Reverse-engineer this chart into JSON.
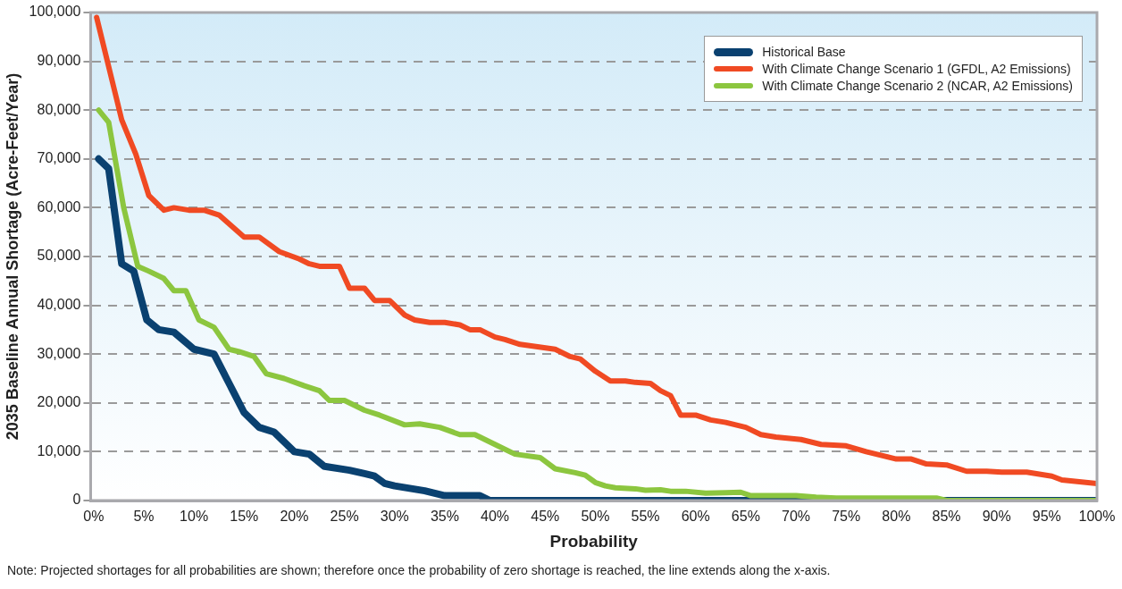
{
  "chart_data": {
    "type": "line",
    "xlabel": "Probability",
    "ylabel": "2035 Baseline Annual Shortage (Acre-Feet/Year)",
    "annotations": [
      "Note: Projected shortages for all probabilities are shown; therefore once the probability of zero shortage is reached, the line extends along the x-axis."
    ],
    "xlim": [
      -0.3,
      100
    ],
    "ylim": [
      0,
      100000
    ],
    "xticks": [
      {
        "value": 0,
        "label": "0%"
      },
      {
        "value": 5,
        "label": "5%"
      },
      {
        "value": 10,
        "label": "10%"
      },
      {
        "value": 15,
        "label": "15%"
      },
      {
        "value": 20,
        "label": "20%"
      },
      {
        "value": 25,
        "label": "25%"
      },
      {
        "value": 30,
        "label": "30%"
      },
      {
        "value": 35,
        "label": "35%"
      },
      {
        "value": 40,
        "label": "40%"
      },
      {
        "value": 45,
        "label": "45%"
      },
      {
        "value": 50,
        "label": "50%"
      },
      {
        "value": 55,
        "label": "55%"
      },
      {
        "value": 60,
        "label": "60%"
      },
      {
        "value": 65,
        "label": "65%"
      },
      {
        "value": 70,
        "label": "70%"
      },
      {
        "value": 75,
        "label": "75%"
      },
      {
        "value": 80,
        "label": "80%"
      },
      {
        "value": 85,
        "label": "85%"
      },
      {
        "value": 90,
        "label": "90%"
      },
      {
        "value": 95,
        "label": "95%"
      },
      {
        "value": 100,
        "label": "100%"
      }
    ],
    "yticks": [
      {
        "value": 0,
        "label": "0"
      },
      {
        "value": 10000,
        "label": "10,000"
      },
      {
        "value": 20000,
        "label": "20,000"
      },
      {
        "value": 30000,
        "label": "30,000"
      },
      {
        "value": 40000,
        "label": "40,000"
      },
      {
        "value": 50000,
        "label": "50,000"
      },
      {
        "value": 60000,
        "label": "60,000"
      },
      {
        "value": 70000,
        "label": "70,000"
      },
      {
        "value": 80000,
        "label": "80,000"
      },
      {
        "value": 90000,
        "label": "90,000"
      },
      {
        "value": 100000,
        "label": "100,000"
      }
    ],
    "grid": "y",
    "legend": "top right",
    "marker": "none",
    "line_style": "solid",
    "series": [
      {
        "name": "Historical Base",
        "color": "#0a4170",
        "x": [
          0.5,
          1.5,
          2.8,
          4,
          5.3,
          6.5,
          8,
          10,
          12,
          14,
          15,
          16.5,
          18,
          20,
          21.5,
          23,
          25.5,
          27,
          28,
          29,
          30,
          33,
          35,
          37,
          38.5,
          39.5,
          100
        ],
        "values": [
          70000,
          68000,
          48500,
          47000,
          37000,
          35000,
          34500,
          31000,
          30000,
          22000,
          18000,
          15000,
          14000,
          10000,
          9500,
          7000,
          6200,
          5500,
          5000,
          3500,
          3000,
          2000,
          1000,
          1000,
          1000,
          0,
          0
        ]
      },
      {
        "name": "With Climate Change Scenario 1 (GFDL, A2 Emissions)",
        "color": "#f04a23",
        "x": [
          0.3,
          2.8,
          4.2,
          5.5,
          7,
          8,
          9.5,
          11,
          12.5,
          15,
          16.5,
          18.5,
          20.5,
          21.5,
          22.5,
          24.5,
          25.5,
          27,
          28,
          29.5,
          31,
          32,
          33.5,
          35,
          36.5,
          37.5,
          38.5,
          40,
          41,
          42.5,
          46,
          47.5,
          48.5,
          50,
          51.5,
          53,
          54,
          55.5,
          56.5,
          57.5,
          58.5,
          60,
          61.5,
          63,
          65,
          66.5,
          68,
          70.5,
          72.5,
          75,
          77,
          80,
          81.5,
          83,
          85,
          87,
          89,
          90.5,
          93,
          95.5,
          96.5,
          100
        ],
        "values": [
          99000,
          78000,
          71000,
          62500,
          59500,
          60000,
          59500,
          59500,
          58500,
          54000,
          54000,
          51000,
          49500,
          48500,
          48000,
          48000,
          43500,
          43500,
          41000,
          41000,
          38000,
          37000,
          36500,
          36500,
          36000,
          35000,
          35000,
          33500,
          33000,
          32000,
          31000,
          29500,
          29000,
          26500,
          24500,
          24500,
          24200,
          24000,
          22500,
          21500,
          17500,
          17500,
          16500,
          16000,
          15000,
          13500,
          13000,
          12500,
          11500,
          11200,
          10000,
          8500,
          8500,
          7500,
          7300,
          6000,
          6000,
          5800,
          5800,
          5000,
          4200,
          3500
        ]
      },
      {
        "name": "With Climate Change Scenario 2 (NCAR, A2 Emissions)",
        "color": "#8cc63f",
        "x": [
          0.5,
          1.5,
          3,
          4.4,
          5.5,
          7,
          8,
          9.2,
          10.5,
          12,
          13.5,
          14.5,
          16,
          17.2,
          19,
          21,
          22.5,
          23.5,
          25,
          27,
          28.5,
          31,
          32.5,
          34.5,
          36.5,
          38,
          40,
          42,
          44.5,
          46,
          48,
          49,
          50,
          51,
          52,
          54,
          55,
          56.5,
          57.5,
          59,
          61,
          63,
          64.5,
          65.5,
          70,
          72,
          74,
          84,
          85,
          100
        ],
        "values": [
          80000,
          77500,
          60000,
          48000,
          47000,
          45500,
          43000,
          43000,
          37000,
          35500,
          31000,
          30500,
          29500,
          26000,
          25000,
          23500,
          22500,
          20500,
          20500,
          18500,
          17500,
          15500,
          15700,
          15000,
          13500,
          13500,
          11500,
          9500,
          8800,
          6500,
          5700,
          5200,
          3700,
          3000,
          2600,
          2400,
          2100,
          2200,
          1900,
          1900,
          1500,
          1600,
          1700,
          1000,
          1000,
          700,
          500,
          500,
          0,
          0
        ]
      }
    ]
  }
}
